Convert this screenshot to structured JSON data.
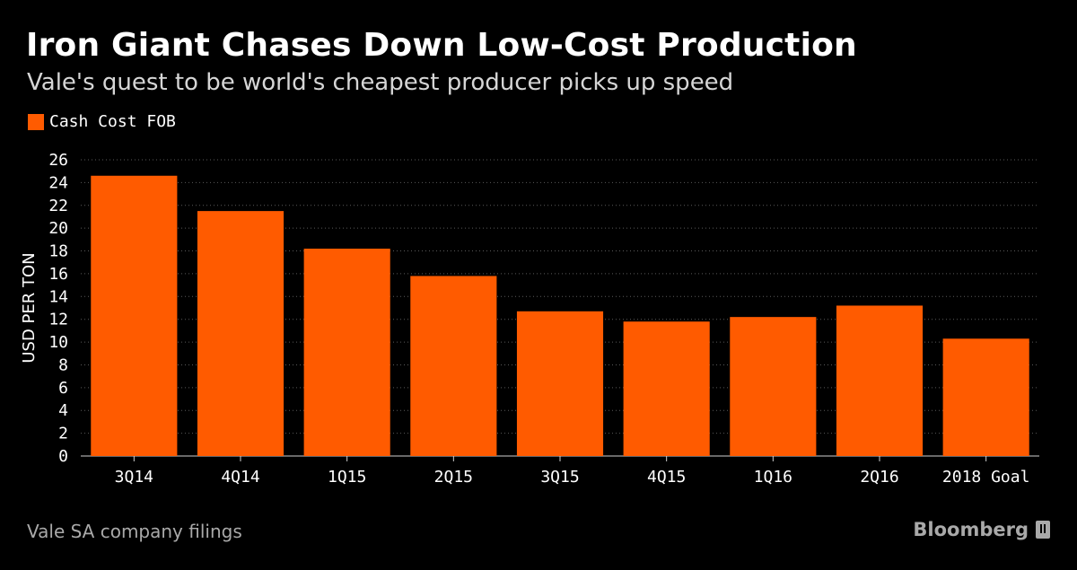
{
  "header": {
    "title": "Iron Giant Chases Down Low-Cost Production",
    "subtitle": "Vale's quest to be world's cheapest producer picks up speed"
  },
  "legend": {
    "label": "Cash Cost FOB",
    "color": "#ff5b00"
  },
  "footer": {
    "source": "Vale SA company filings",
    "brand": "Bloomberg"
  },
  "chart_data": {
    "type": "bar",
    "title": "Iron Giant Chases Down Low-Cost Production",
    "subtitle": "Vale's quest to be world's cheapest producer picks up speed",
    "xlabel": "",
    "ylabel": "USD PER TON",
    "categories": [
      "3Q14",
      "4Q14",
      "1Q15",
      "2Q15",
      "3Q15",
      "4Q15",
      "1Q16",
      "2Q16",
      "2018 Goal"
    ],
    "series": [
      {
        "name": "Cash Cost FOB",
        "values": [
          24.6,
          21.5,
          18.2,
          15.8,
          12.7,
          11.8,
          12.2,
          13.2,
          10.3
        ],
        "color": "#ff5b00"
      }
    ],
    "ylim": [
      0,
      26
    ],
    "yticks": [
      0,
      2,
      4,
      6,
      8,
      10,
      12,
      14,
      16,
      18,
      20,
      22,
      24,
      26
    ],
    "grid": true,
    "legend_position": "top-left"
  }
}
